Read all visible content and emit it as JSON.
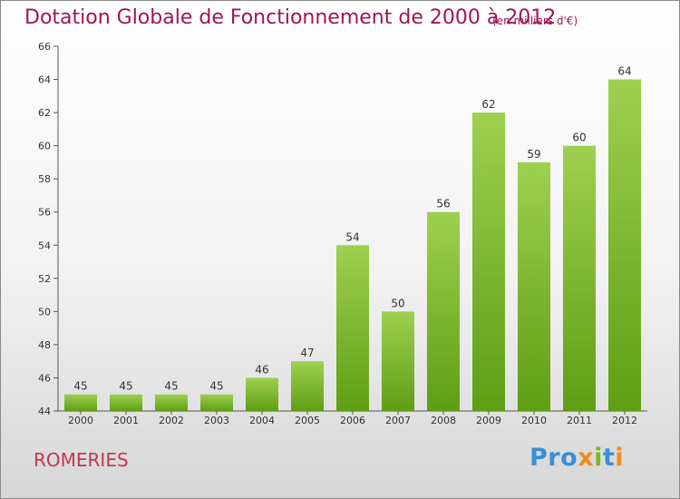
{
  "title": "Dotation Globale de Fonctionnement de 2000 à 2012",
  "unit": "(en milliers d'€)",
  "commune": "ROMERIES",
  "brand": "Proxiti",
  "colors": {
    "title": "#a0145a",
    "bar_light": "#9ed050",
    "bar_dark": "#5e9e14",
    "brand_blue": "#3a8fd6",
    "brand_orange": "#f08c1e",
    "brand_green": "#7ab829"
  },
  "chart_data": {
    "type": "bar",
    "title": "Dotation Globale de Fonctionnement de 2000 à 2012",
    "unit": "(en milliers d'€)",
    "categories": [
      "2000",
      "2001",
      "2002",
      "2003",
      "2004",
      "2005",
      "2006",
      "2007",
      "2008",
      "2009",
      "2010",
      "2011",
      "2012"
    ],
    "values": [
      45,
      45,
      45,
      45,
      46,
      47,
      54,
      50,
      56,
      62,
      59,
      60,
      64
    ],
    "ylim": [
      44,
      66
    ],
    "yticks": [
      44,
      46,
      48,
      50,
      52,
      54,
      56,
      58,
      60,
      62,
      64,
      66
    ],
    "grid": false,
    "xlabel": "",
    "ylabel": ""
  }
}
